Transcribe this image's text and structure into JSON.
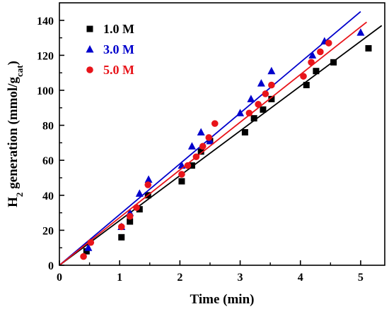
{
  "chart_data": {
    "type": "scatter",
    "xlabel": "Time (min)",
    "ylabel_parts": {
      "main": "H",
      "sub1": "2",
      "middle": " generation (mmol/g",
      "sub2": "cat",
      "end": ")"
    },
    "xlim": [
      0,
      5.4
    ],
    "ylim": [
      0,
      150
    ],
    "xticks": [
      0,
      1,
      2,
      3,
      4,
      5
    ],
    "yticks": [
      0,
      20,
      40,
      60,
      80,
      100,
      120,
      140
    ],
    "legend_position": "top-left",
    "series": [
      {
        "name": "1.0 M",
        "color": "#000000",
        "marker": "square",
        "fit": [
          [
            0,
            0
          ],
          [
            5.35,
            137
          ]
        ],
        "points": [
          [
            0.45,
            8
          ],
          [
            1.03,
            16
          ],
          [
            1.17,
            25
          ],
          [
            1.33,
            32
          ],
          [
            1.47,
            40
          ],
          [
            2.03,
            48
          ],
          [
            2.2,
            57
          ],
          [
            2.35,
            65
          ],
          [
            2.5,
            71
          ],
          [
            3.08,
            76
          ],
          [
            3.23,
            84
          ],
          [
            3.38,
            89
          ],
          [
            3.52,
            95
          ],
          [
            4.1,
            103
          ],
          [
            4.26,
            111
          ],
          [
            4.55,
            116
          ],
          [
            5.13,
            124
          ]
        ]
      },
      {
        "name": "3.0 M",
        "color": "#0000cc",
        "marker": "triangle",
        "fit": [
          [
            0,
            0
          ],
          [
            5.0,
            145
          ]
        ],
        "points": [
          [
            0.48,
            10
          ],
          [
            1.03,
            22
          ],
          [
            1.17,
            30
          ],
          [
            1.33,
            41
          ],
          [
            1.48,
            49
          ],
          [
            2.03,
            57
          ],
          [
            2.2,
            68
          ],
          [
            2.35,
            76
          ],
          [
            2.5,
            71
          ],
          [
            3.0,
            87
          ],
          [
            3.18,
            95
          ],
          [
            3.35,
            104
          ],
          [
            3.52,
            111
          ],
          [
            4.2,
            120
          ],
          [
            4.4,
            128
          ],
          [
            5.0,
            133
          ]
        ]
      },
      {
        "name": "5.0 M",
        "color": "#e8141a",
        "marker": "circle",
        "fit": [
          [
            0,
            0
          ],
          [
            5.1,
            139
          ]
        ],
        "points": [
          [
            0.4,
            5
          ],
          [
            0.52,
            13
          ],
          [
            1.03,
            22
          ],
          [
            1.17,
            28
          ],
          [
            1.28,
            33
          ],
          [
            1.47,
            46
          ],
          [
            2.03,
            52
          ],
          [
            2.13,
            57
          ],
          [
            2.27,
            62
          ],
          [
            2.38,
            68
          ],
          [
            2.48,
            73
          ],
          [
            2.58,
            81
          ],
          [
            3.15,
            87
          ],
          [
            3.3,
            92
          ],
          [
            3.42,
            98
          ],
          [
            3.52,
            103
          ],
          [
            4.05,
            108
          ],
          [
            4.18,
            116
          ],
          [
            4.33,
            122
          ],
          [
            4.47,
            127
          ]
        ]
      }
    ]
  }
}
